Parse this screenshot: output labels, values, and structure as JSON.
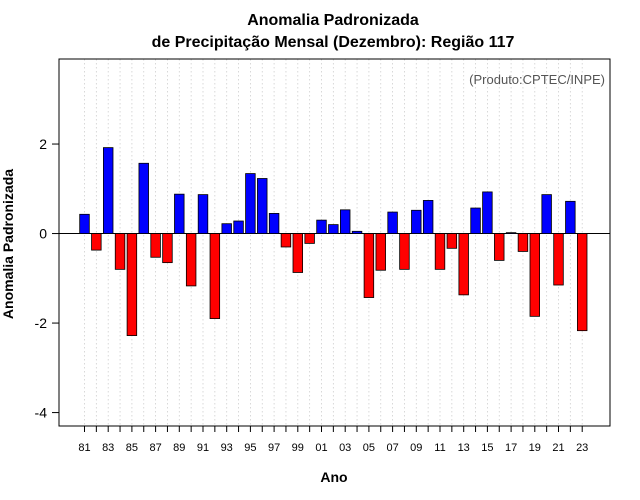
{
  "chart_data": {
    "type": "bar",
    "title_line1": "Anomalia Padronizada",
    "title_line2": "de Precipitação Mensal (Dezembro): Região 117",
    "xlabel": "Ano",
    "ylabel": "Anomalia Padronizada",
    "credit": "(Produto:CPTEC/INPE)",
    "ylim": [
      -4.3,
      3.9
    ],
    "yticks": [
      -4,
      -2,
      0,
      2
    ],
    "ytick_labels": [
      "-4",
      "-2",
      "0",
      "2"
    ],
    "grid": "vertical dotted at each year",
    "positive_color": "#0000ff",
    "negative_color": "#ff0000",
    "categories": [
      "81",
      "82",
      "83",
      "84",
      "85",
      "86",
      "87",
      "88",
      "89",
      "90",
      "91",
      "92",
      "93",
      "94",
      "95",
      "96",
      "97",
      "98",
      "99",
      "00",
      "01",
      "02",
      "03",
      "04",
      "05",
      "06",
      "07",
      "08",
      "09",
      "10",
      "11",
      "12",
      "13",
      "14",
      "15",
      "16",
      "17",
      "18",
      "19",
      "20",
      "21",
      "22",
      "23"
    ],
    "xtick_labels": [
      "81",
      "83",
      "85",
      "87",
      "89",
      "91",
      "93",
      "95",
      "97",
      "99",
      "01",
      "03",
      "05",
      "07",
      "09",
      "11",
      "13",
      "15",
      "17",
      "19",
      "21",
      "23"
    ],
    "values": [
      0.43,
      -0.37,
      1.92,
      -0.8,
      -2.28,
      1.57,
      -0.53,
      -0.65,
      0.88,
      -1.17,
      0.87,
      -1.9,
      0.22,
      0.28,
      1.34,
      1.23,
      0.45,
      -0.3,
      -0.87,
      -0.22,
      0.3,
      0.2,
      0.53,
      0.05,
      -1.43,
      -0.82,
      0.48,
      -0.8,
      0.52,
      0.74,
      -0.8,
      -0.33,
      -1.37,
      0.57,
      0.93,
      -0.6,
      0.02,
      -0.4,
      -1.85,
      0.87,
      -1.15,
      0.72,
      -2.17
    ]
  }
}
